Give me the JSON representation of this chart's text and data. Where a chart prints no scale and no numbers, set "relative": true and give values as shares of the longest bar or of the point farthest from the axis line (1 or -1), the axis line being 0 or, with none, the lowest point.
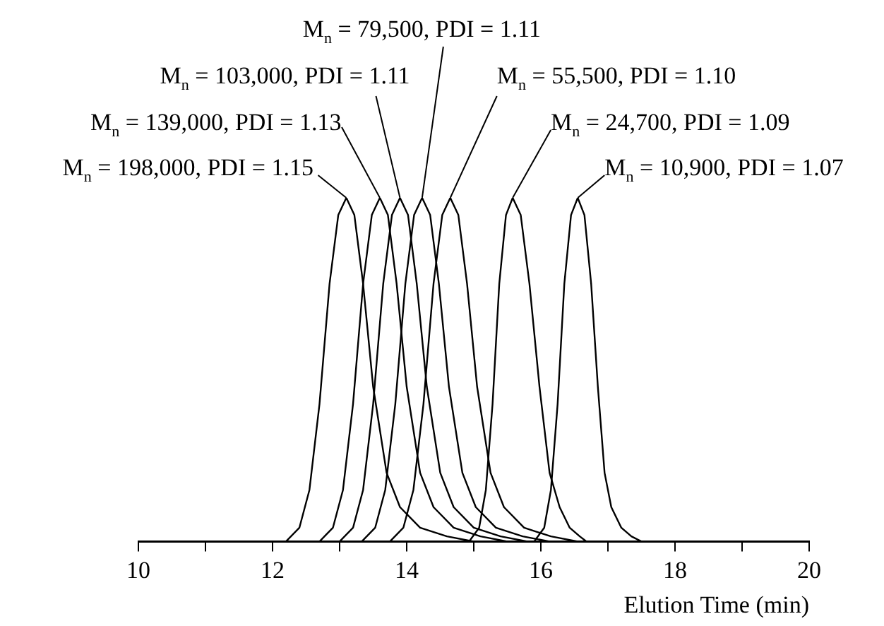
{
  "chart_data": {
    "type": "line",
    "relative": true,
    "xlabel": "Elution Time (min)",
    "xlim": [
      10,
      20
    ],
    "xticks": [
      10,
      {
        "value": 11,
        "label": null
      },
      12,
      {
        "value": 13,
        "label": null
      },
      14,
      {
        "value": 15,
        "label": null
      },
      16,
      {
        "value": 17,
        "label": null
      },
      18,
      {
        "value": 19,
        "label": null
      },
      20
    ],
    "grid": false,
    "legend": false,
    "marker": "none",
    "line_style": "solid",
    "series": [
      {
        "name": "M$_{n}$ = 198,000, PDI = 1.15",
        "color": "#000000",
        "x": [
          12.2,
          12.4,
          12.55,
          12.7,
          12.85,
          12.98,
          13.1,
          13.22,
          13.35,
          13.5,
          13.7,
          13.9,
          14.2,
          14.6,
          15.0
        ],
        "values": [
          0,
          0.04,
          0.15,
          0.4,
          0.75,
          0.95,
          1,
          0.95,
          0.75,
          0.45,
          0.2,
          0.1,
          0.04,
          0.015,
          0
        ]
      },
      {
        "name": "M$_{n}$ = 139,000, PDI = 1.13",
        "color": "#000000",
        "x": [
          12.7,
          12.9,
          13.05,
          13.2,
          13.35,
          13.48,
          13.6,
          13.72,
          13.85,
          14.0,
          14.2,
          14.4,
          14.7,
          15.1,
          15.5
        ],
        "values": [
          0,
          0.04,
          0.15,
          0.4,
          0.75,
          0.95,
          1,
          0.95,
          0.75,
          0.45,
          0.2,
          0.1,
          0.04,
          0.015,
          0
        ]
      },
      {
        "name": "M$_{n}$ = 103,000, PDI = 1.11",
        "color": "#000000",
        "x": [
          13.0,
          13.2,
          13.35,
          13.5,
          13.65,
          13.78,
          13.9,
          14.02,
          14.15,
          14.3,
          14.5,
          14.7,
          15.0,
          15.4,
          15.8
        ],
        "values": [
          0,
          0.04,
          0.15,
          0.4,
          0.75,
          0.95,
          1,
          0.95,
          0.75,
          0.45,
          0.2,
          0.1,
          0.04,
          0.015,
          0
        ]
      },
      {
        "name": "M$_{n}$ = 79,500, PDI = 1.11",
        "color": "#000000",
        "x": [
          13.33,
          13.53,
          13.68,
          13.83,
          13.98,
          14.11,
          14.23,
          14.35,
          14.48,
          14.63,
          14.83,
          15.03,
          15.33,
          15.73,
          16.13
        ],
        "values": [
          0,
          0.04,
          0.15,
          0.4,
          0.75,
          0.95,
          1,
          0.95,
          0.75,
          0.45,
          0.2,
          0.1,
          0.04,
          0.015,
          0
        ]
      },
      {
        "name": "M$_{n}$ = 55,500, PDI = 1.10",
        "color": "#000000",
        "x": [
          13.75,
          13.95,
          14.1,
          14.25,
          14.4,
          14.53,
          14.65,
          14.77,
          14.9,
          15.05,
          15.25,
          15.45,
          15.75,
          16.15,
          16.55
        ],
        "values": [
          0,
          0.04,
          0.15,
          0.4,
          0.75,
          0.95,
          1,
          0.95,
          0.75,
          0.45,
          0.2,
          0.1,
          0.04,
          0.015,
          0
        ]
      },
      {
        "name": "M$_{n}$ = 24,700, PDI = 1.09",
        "color": "#000000",
        "x": [
          14.93,
          15.08,
          15.18,
          15.28,
          15.38,
          15.48,
          15.58,
          15.7,
          15.83,
          15.98,
          16.13,
          16.28,
          16.43,
          16.58,
          16.68
        ],
        "values": [
          0,
          0.04,
          0.15,
          0.4,
          0.75,
          0.95,
          1,
          0.95,
          0.75,
          0.45,
          0.2,
          0.1,
          0.04,
          0.015,
          0
        ]
      },
      {
        "name": "M$_{n}$ = 10,900, PDI = 1.07",
        "color": "#000000",
        "x": [
          15.9,
          16.05,
          16.15,
          16.25,
          16.35,
          16.45,
          16.55,
          16.65,
          16.75,
          16.85,
          16.95,
          17.05,
          17.2,
          17.35,
          17.5
        ],
        "values": [
          0,
          0.04,
          0.15,
          0.4,
          0.75,
          0.95,
          1,
          0.95,
          0.75,
          0.45,
          0.2,
          0.1,
          0.04,
          0.015,
          0
        ]
      }
    ]
  }
}
